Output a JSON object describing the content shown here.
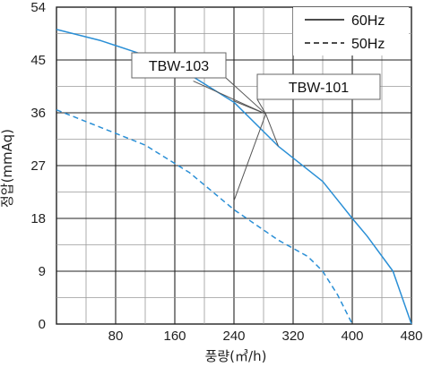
{
  "chart_data": {
    "type": "line",
    "xlabel": "풍량(㎥/h)",
    "ylabel": "정압(mmAq)",
    "xlim": [
      0,
      480
    ],
    "ylim": [
      0,
      54
    ],
    "x_ticks": [
      "80",
      "160",
      "240",
      "320",
      "400",
      "480"
    ],
    "y_ticks": [
      "0",
      "9",
      "18",
      "27",
      "36",
      "45",
      "54"
    ],
    "grid": true,
    "legend": {
      "placement": "top-right",
      "entries": [
        {
          "label": "60Hz",
          "style": "solid"
        },
        {
          "label": "50Hz",
          "style": "dashed"
        }
      ]
    },
    "series_color": "#2a8fd6",
    "series": [
      {
        "name": "60Hz",
        "style": "solid",
        "x": [
          0,
          60,
          120,
          180,
          240,
          300,
          360,
          400,
          420,
          455,
          480
        ],
        "y": [
          50.2,
          48.3,
          45.8,
          42.5,
          37.8,
          30.3,
          24.3,
          18.0,
          15.0,
          9.0,
          0.0
        ]
      },
      {
        "name": "50Hz",
        "style": "dashed",
        "x": [
          0,
          60,
          120,
          180,
          240,
          300,
          340,
          360,
          380,
          400
        ],
        "y": [
          36.5,
          33.5,
          30.5,
          25.8,
          19.5,
          14.3,
          11.5,
          9.0,
          5.0,
          0.0
        ]
      }
    ],
    "annotations": [
      {
        "label": "TBW-103",
        "points_to": [
          [
            185,
            41.4
          ],
          [
            240,
            38.0
          ]
        ]
      },
      {
        "label": "TBW-101",
        "points_to": [
          [
            300,
            30.3
          ],
          [
            240,
            21.0
          ]
        ]
      }
    ]
  }
}
